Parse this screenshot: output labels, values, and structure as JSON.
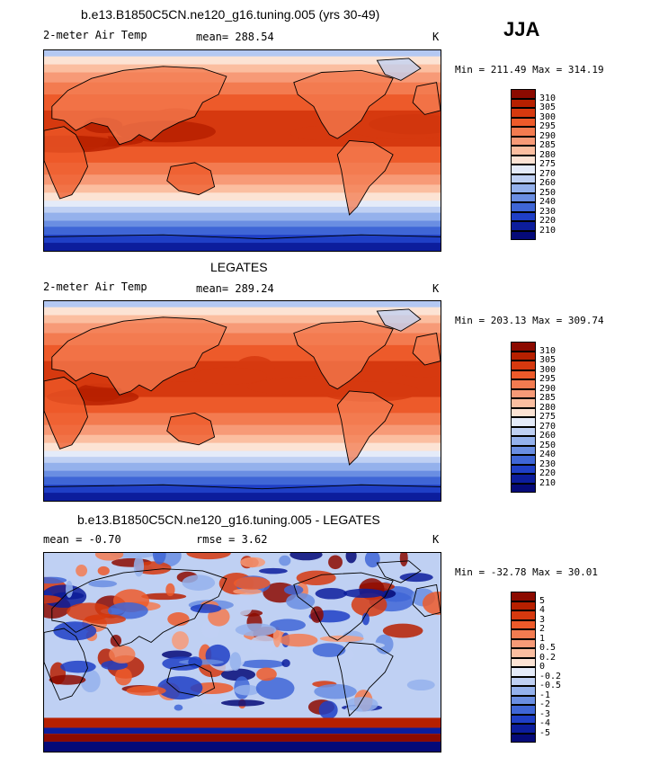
{
  "season": "JJA",
  "panels": [
    {
      "id": "model",
      "title": "b.e13.B1850C5CN.ne120_g16.tuning.005 (yrs 30-49)",
      "left_label": "2-meter Air Temp",
      "mid_label": "mean= 288.54",
      "units": "K",
      "minmax": "Min = 211.49 Max = 314.19"
    },
    {
      "id": "obs",
      "title": "LEGATES",
      "left_label": "2-meter Air Temp",
      "mid_label": "mean= 289.24",
      "units": "K",
      "minmax": "Min = 203.13 Max = 309.74"
    },
    {
      "id": "diff",
      "title": "b.e13.B1850C5CN.ne120_g16.tuning.005 - LEGATES",
      "left_label": "mean =   -0.70",
      "mid_label": "rmse =    3.62",
      "units": "K",
      "minmax": "Min = -32.78 Max =  30.01"
    }
  ],
  "colorbars": {
    "temperature": {
      "labels": [
        "310",
        "305",
        "300",
        "295",
        "290",
        "285",
        "280",
        "275",
        "270",
        "260",
        "250",
        "240",
        "230",
        "220",
        "210"
      ],
      "colors": [
        "#8c0a00",
        "#b72000",
        "#d6390f",
        "#ed5a2a",
        "#f37b50",
        "#f79a77",
        "#fbbea0",
        "#fce3d4",
        "#e4ebf9",
        "#bfd0f3",
        "#94b1ec",
        "#6a8ee2",
        "#3f66d6",
        "#1f3fc6",
        "#0c1d9c",
        "#050a78"
      ]
    },
    "difference": {
      "labels": [
        "5",
        "4",
        "3",
        "2",
        "1",
        "0.5",
        "0.2",
        "0",
        "-0.2",
        "-0.5",
        "-1",
        "-2",
        "-3",
        "-4",
        "-5"
      ],
      "colors": [
        "#8c0a00",
        "#b72000",
        "#d6390f",
        "#ed5a2a",
        "#f37b50",
        "#f79a77",
        "#fbbea0",
        "#fce3d4",
        "#e4ebf9",
        "#bfd0f3",
        "#94b1ec",
        "#6a8ee2",
        "#3f66d6",
        "#1f3fc6",
        "#0c1d9c",
        "#050a78"
      ]
    }
  },
  "chart_data": [
    {
      "type": "heatmap",
      "title": "b.e13.B1850C5CN.ne120_g16.tuning.005 (yrs 30-49)",
      "variable": "2-meter Air Temp",
      "units": "K",
      "mean": 288.54,
      "min": 211.49,
      "max": 314.19,
      "contour_levels": [
        210,
        220,
        230,
        240,
        250,
        260,
        270,
        275,
        280,
        285,
        290,
        295,
        300,
        305,
        310
      ]
    },
    {
      "type": "heatmap",
      "title": "LEGATES",
      "variable": "2-meter Air Temp",
      "units": "K",
      "mean": 289.24,
      "min": 203.13,
      "max": 309.74,
      "contour_levels": [
        210,
        220,
        230,
        240,
        250,
        260,
        270,
        275,
        280,
        285,
        290,
        295,
        300,
        305,
        310
      ]
    },
    {
      "type": "heatmap",
      "title": "b.e13.B1850C5CN.ne120_g16.tuning.005 - LEGATES",
      "units": "K",
      "mean": -0.7,
      "rmse": 3.62,
      "min": -32.78,
      "max": 30.01,
      "contour_levels": [
        -5,
        -4,
        -3,
        -2,
        -1,
        -0.5,
        -0.2,
        0,
        0.2,
        0.5,
        1,
        2,
        3,
        4,
        5
      ]
    }
  ]
}
